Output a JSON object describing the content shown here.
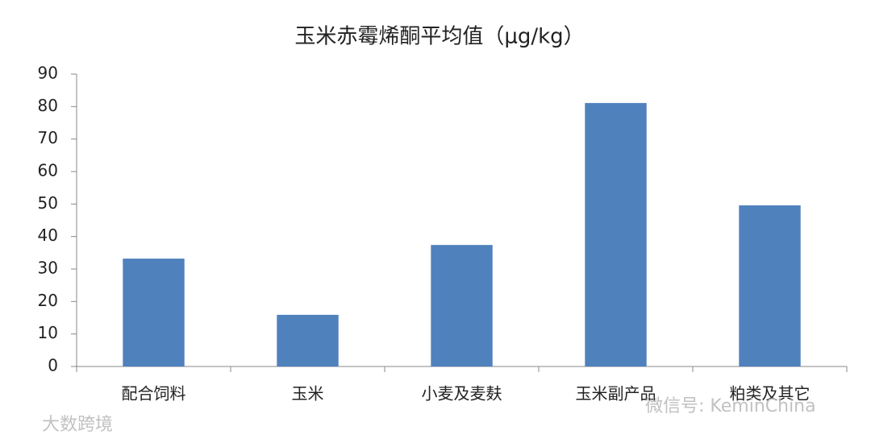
{
  "chart_data": {
    "type": "bar",
    "title": "玉米赤霉烯酮平均值（μg/kg）",
    "categories": [
      "配合饲料",
      "玉米",
      "小麦及麦麸",
      "玉米副产品",
      "粕类及其它"
    ],
    "values": [
      33.2,
      15.9,
      37.4,
      81.1,
      49.6
    ],
    "color": "#4f81bd",
    "ylim": [
      0,
      90
    ],
    "yticks": [
      0,
      10,
      20,
      30,
      40,
      50,
      60,
      70,
      80,
      90
    ],
    "grid": false
  },
  "watermarks": [
    "微信号: KeminChina",
    "大数跨境"
  ]
}
